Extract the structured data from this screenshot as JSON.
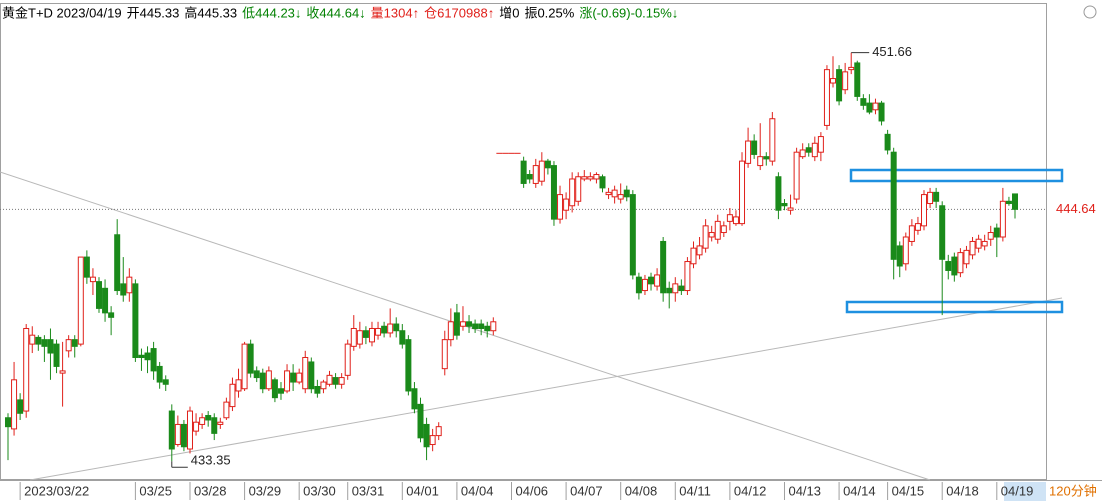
{
  "chart_data": {
    "type": "candlestick",
    "header": [
      {
        "text": "黄金T+D 2023/04/19",
        "color": "#000000"
      },
      {
        "text": "开445.33",
        "color": "#000000"
      },
      {
        "text": "高445.33",
        "color": "#000000"
      },
      {
        "text": "低444.23↓",
        "color": "#008000"
      },
      {
        "text": "收444.64↓",
        "color": "#008000"
      },
      {
        "text": "量1304↑",
        "color": "#e0201a"
      },
      {
        "text": "仓6170988↑",
        "color": "#e0201a"
      },
      {
        "text": "增0",
        "color": "#000000"
      },
      {
        "text": "振0.25%",
        "color": "#000000"
      },
      {
        "text": "涨(-0.69)-0.15%↓",
        "color": "#008000"
      }
    ],
    "period": "120分钟",
    "up_color": "#e0201a",
    "down_color": "#1a8a1a",
    "ylim": [
      432.6,
      452.9
    ],
    "last_price": 444.64,
    "max_label": 451.66,
    "min_label": 433.35,
    "categories": [
      null,
      null,
      "2023/03/22",
      null,
      null,
      null,
      null,
      null,
      null,
      null,
      null,
      null,
      null,
      null,
      null,
      null,
      null,
      null,
      null,
      null,
      null,
      "03/25",
      null,
      null,
      null,
      null,
      null,
      null,
      null,
      null,
      "03/28",
      null,
      null,
      null,
      null,
      null,
      null,
      null,
      null,
      "03/29",
      null,
      null,
      null,
      null,
      null,
      null,
      null,
      null,
      "03/30",
      null,
      null,
      null,
      null,
      null,
      null,
      null,
      "03/31",
      null,
      null,
      null,
      null,
      null,
      null,
      null,
      null,
      "04/01",
      null,
      null,
      null,
      null,
      null,
      null,
      null,
      null,
      "04/04",
      null,
      null,
      null,
      null,
      null,
      null,
      null,
      null,
      "04/06",
      null,
      null,
      null,
      null,
      null,
      null,
      null,
      null,
      "04/07",
      null,
      null,
      null,
      null,
      null,
      null,
      null,
      null,
      "04/08",
      null,
      null,
      null,
      null,
      null,
      null,
      null,
      null,
      "04/11",
      null,
      null,
      null,
      null,
      null,
      null,
      null,
      null,
      "04/12",
      null,
      null,
      null,
      null,
      null,
      null,
      null,
      null,
      "04/13",
      null,
      null,
      null,
      null,
      null,
      null,
      null,
      null,
      "04/14",
      null,
      null,
      null,
      null,
      null,
      null,
      null,
      "04/15",
      null,
      null,
      null,
      null,
      null,
      null,
      null,
      null,
      "04/18",
      null,
      null,
      null,
      null,
      null,
      null,
      null,
      null,
      "04/19",
      null,
      null,
      null
    ],
    "ohlc": [
      [
        435.3,
        435.5,
        433.4,
        434.9
      ],
      [
        434.8,
        437.8,
        434.5,
        437.0
      ],
      [
        436.1,
        436.4,
        435.2,
        435.5
      ],
      [
        435.6,
        439.5,
        435.3,
        439.3
      ],
      [
        438.6,
        439.4,
        438.2,
        439.0
      ],
      [
        438.9,
        439.0,
        438.3,
        438.6
      ],
      [
        438.8,
        439.0,
        437.8,
        438.5
      ],
      [
        438.8,
        439.3,
        437.0,
        438.2
      ],
      [
        438.6,
        438.8,
        437.3,
        437.6
      ],
      [
        437.3,
        438.7,
        435.8,
        437.4
      ],
      [
        438.3,
        439.0,
        438.0,
        438.8
      ],
      [
        438.8,
        439.0,
        438.0,
        438.5
      ],
      [
        438.6,
        442.5,
        438.5,
        442.5
      ],
      [
        442.5,
        442.8,
        441.3,
        441.6
      ],
      [
        441.4,
        442.0,
        440.8,
        441.6
      ],
      [
        441.4,
        441.6,
        440.0,
        440.2
      ],
      [
        441.1,
        441.5,
        439.6,
        440.0
      ],
      [
        440.0,
        440.3,
        439.0,
        439.8
      ],
      [
        443.5,
        444.2,
        440.8,
        441.0
      ],
      [
        441.3,
        442.5,
        440.5,
        440.8
      ],
      [
        440.9,
        442.0,
        440.5,
        441.6
      ],
      [
        441.3,
        441.5,
        437.8,
        438.0
      ],
      [
        438.1,
        438.4,
        437.4,
        438.0
      ],
      [
        438.2,
        438.5,
        437.3,
        437.9
      ],
      [
        438.4,
        438.7,
        437.0,
        437.4
      ],
      [
        437.6,
        437.8,
        436.6,
        436.9
      ],
      [
        437.0,
        437.2,
        436.5,
        436.8
      ],
      [
        435.6,
        435.9,
        433.35,
        433.9
      ],
      [
        434.1,
        435.4,
        434.0,
        435.0
      ],
      [
        435.0,
        435.2,
        433.8,
        434.0
      ],
      [
        433.9,
        435.8,
        433.7,
        435.6
      ],
      [
        434.7,
        435.5,
        434.5,
        435.1
      ],
      [
        435.0,
        435.5,
        434.8,
        435.3
      ],
      [
        435.4,
        435.6,
        434.9,
        435.2
      ],
      [
        435.3,
        435.5,
        434.3,
        434.6
      ],
      [
        435.0,
        435.3,
        434.8,
        435.1
      ],
      [
        435.3,
        436.2,
        435.2,
        436.0
      ],
      [
        435.8,
        437.1,
        435.6,
        436.8
      ],
      [
        436.5,
        437.5,
        436.2,
        437.0
      ],
      [
        436.6,
        438.7,
        436.5,
        438.6
      ],
      [
        438.6,
        438.8,
        437.1,
        437.3
      ],
      [
        437.4,
        437.6,
        436.9,
        437.1
      ],
      [
        437.3,
        437.5,
        436.4,
        436.6
      ],
      [
        436.6,
        437.6,
        436.5,
        437.4
      ],
      [
        437.0,
        437.1,
        436.0,
        436.2
      ],
      [
        436.6,
        436.9,
        436.1,
        436.4
      ],
      [
        436.5,
        437.7,
        436.4,
        437.4
      ],
      [
        437.3,
        437.7,
        436.5,
        436.9
      ],
      [
        436.9,
        437.5,
        436.8,
        437.3
      ],
      [
        436.6,
        438.3,
        436.4,
        438.0
      ],
      [
        437.8,
        438.0,
        436.4,
        436.6
      ],
      [
        436.7,
        437.0,
        436.2,
        436.4
      ],
      [
        436.6,
        437.0,
        436.4,
        436.9
      ],
      [
        436.8,
        437.4,
        436.7,
        437.2
      ],
      [
        437.1,
        437.3,
        436.6,
        436.8
      ],
      [
        436.8,
        437.3,
        436.6,
        437.1
      ],
      [
        437.2,
        438.8,
        437.0,
        438.6
      ],
      [
        438.5,
        439.9,
        438.3,
        439.3
      ],
      [
        438.6,
        439.6,
        438.4,
        439.2
      ],
      [
        439.2,
        439.4,
        438.6,
        438.9
      ],
      [
        438.7,
        439.6,
        438.5,
        439.3
      ],
      [
        439.0,
        439.6,
        438.8,
        439.3
      ],
      [
        439.4,
        439.6,
        438.9,
        439.1
      ],
      [
        439.1,
        440.2,
        438.9,
        439.5
      ],
      [
        439.5,
        439.8,
        438.9,
        439.2
      ],
      [
        439.2,
        439.5,
        438.4,
        438.6
      ],
      [
        438.8,
        439.0,
        436.3,
        436.5
      ],
      [
        436.6,
        436.9,
        435.5,
        435.7
      ],
      [
        435.9,
        436.2,
        434.2,
        434.4
      ],
      [
        435.0,
        435.3,
        433.4,
        434.0
      ],
      [
        434.1,
        434.8,
        433.8,
        434.5
      ],
      [
        434.5,
        435.1,
        434.3,
        434.9
      ],
      [
        437.5,
        439.2,
        437.2,
        438.8
      ],
      [
        438.8,
        440.2,
        438.5,
        439.6
      ],
      [
        440.0,
        440.4,
        438.8,
        439.0
      ],
      [
        439.4,
        440.3,
        439.2,
        439.6
      ],
      [
        439.6,
        439.9,
        439.1,
        439.4
      ],
      [
        439.5,
        439.7,
        439.1,
        439.3
      ],
      [
        439.5,
        439.7,
        439.0,
        439.3
      ],
      [
        439.4,
        439.6,
        438.9,
        439.2
      ],
      [
        439.2,
        439.8,
        439.0,
        439.6
      ],
      [
        447.15,
        447.15,
        447.15,
        447.15
      ],
      [
        447.15,
        447.15,
        447.15,
        447.15
      ],
      [
        447.15,
        447.15,
        447.15,
        447.15
      ],
      [
        447.15,
        447.15,
        447.15,
        447.15
      ],
      [
        446.8,
        447.0,
        445.6,
        445.8
      ],
      [
        446.2,
        446.4,
        445.8,
        446.0
      ],
      [
        445.8,
        446.9,
        445.6,
        446.6
      ],
      [
        445.9,
        447.2,
        445.7,
        446.8
      ],
      [
        446.8,
        446.9,
        446.2,
        446.5
      ],
      [
        446.6,
        446.8,
        443.9,
        444.2
      ],
      [
        444.2,
        445.7,
        444.0,
        445.3
      ],
      [
        444.6,
        445.4,
        444.2,
        445.1
      ],
      [
        444.8,
        446.3,
        444.5,
        446.0
      ],
      [
        445.0,
        446.3,
        444.8,
        446.1
      ],
      [
        446.0,
        446.4,
        445.9,
        446.1
      ],
      [
        446.0,
        446.3,
        445.9,
        446.1
      ],
      [
        446.0,
        446.3,
        445.8,
        446.2
      ],
      [
        446.1,
        446.2,
        445.4,
        445.6
      ],
      [
        445.3,
        445.6,
        445.1,
        445.4
      ],
      [
        445.2,
        445.7,
        444.9,
        445.5
      ],
      [
        445.1,
        445.8,
        444.9,
        445.3
      ],
      [
        445.5,
        445.7,
        445.0,
        445.2
      ],
      [
        445.3,
        445.5,
        441.5,
        441.7
      ],
      [
        441.6,
        441.8,
        440.6,
        440.9
      ],
      [
        441.0,
        441.7,
        440.8,
        441.5
      ],
      [
        441.6,
        441.8,
        441.0,
        441.3
      ],
      [
        441.2,
        442.0,
        441.0,
        441.7
      ],
      [
        443.2,
        443.4,
        440.5,
        440.9
      ],
      [
        441.1,
        441.4,
        440.2,
        440.9
      ],
      [
        440.9,
        441.6,
        440.5,
        441.3
      ],
      [
        441.2,
        441.5,
        440.8,
        441.0
      ],
      [
        441.0,
        442.5,
        440.8,
        442.3
      ],
      [
        442.2,
        443.2,
        442.0,
        442.9
      ],
      [
        442.6,
        443.4,
        442.4,
        443.0
      ],
      [
        442.9,
        444.2,
        442.7,
        443.9
      ],
      [
        443.4,
        443.9,
        443.2,
        443.6
      ],
      [
        443.3,
        444.4,
        443.1,
        444.1
      ],
      [
        443.6,
        444.1,
        443.4,
        443.9
      ],
      [
        444.1,
        444.7,
        443.7,
        444.4
      ],
      [
        444.0,
        444.6,
        443.9,
        444.3
      ],
      [
        444.0,
        447.2,
        443.9,
        446.8
      ],
      [
        446.7,
        448.3,
        446.5,
        447.7
      ],
      [
        447.7,
        448.0,
        446.9,
        447.1
      ],
      [
        446.6,
        448.5,
        446.4,
        447.0
      ],
      [
        447.0,
        447.2,
        446.6,
        446.9
      ],
      [
        446.8,
        449.0,
        446.6,
        448.7
      ],
      [
        446.1,
        446.3,
        444.2,
        444.6
      ],
      [
        444.9,
        445.1,
        444.6,
        444.8
      ],
      [
        444.6,
        445.3,
        444.4,
        444.7
      ],
      [
        445.1,
        447.4,
        444.9,
        447.2
      ],
      [
        447.0,
        447.6,
        446.9,
        447.3
      ],
      [
        447.4,
        447.6,
        447.0,
        447.2
      ],
      [
        447.0,
        447.9,
        446.8,
        447.6
      ],
      [
        447.2,
        448.1,
        446.8,
        447.9
      ],
      [
        448.4,
        451.1,
        448.2,
        450.9
      ],
      [
        450.3,
        451.5,
        450.1,
        450.5
      ],
      [
        450.9,
        451.1,
        449.3,
        449.5
      ],
      [
        450.0,
        451.2,
        449.8,
        450.8
      ],
      [
        450.9,
        451.66,
        450.7,
        451.0
      ],
      [
        451.2,
        451.3,
        449.5,
        449.7
      ],
      [
        449.6,
        449.8,
        449.1,
        449.3
      ],
      [
        449.4,
        449.8,
        448.9,
        449.0
      ],
      [
        449.1,
        449.6,
        448.9,
        449.4
      ],
      [
        449.4,
        449.5,
        448.4,
        448.6
      ],
      [
        448.0,
        448.2,
        447.1,
        447.3
      ],
      [
        447.2,
        447.4,
        441.5,
        442.4
      ],
      [
        443.0,
        443.2,
        441.6,
        442.1
      ],
      [
        442.2,
        443.6,
        441.9,
        443.4
      ],
      [
        443.2,
        444.2,
        443.0,
        443.9
      ],
      [
        443.7,
        444.3,
        443.5,
        444.0
      ],
      [
        443.9,
        445.5,
        443.7,
        445.3
      ],
      [
        444.9,
        445.6,
        444.7,
        445.4
      ],
      [
        445.4,
        445.6,
        444.7,
        445.0
      ],
      [
        444.8,
        445.0,
        439.9,
        442.4
      ],
      [
        442.3,
        442.6,
        441.5,
        441.9
      ],
      [
        442.5,
        442.7,
        441.4,
        441.7
      ],
      [
        441.8,
        442.9,
        441.6,
        442.7
      ],
      [
        442.2,
        443.0,
        442.0,
        442.8
      ],
      [
        442.6,
        443.4,
        442.4,
        443.2
      ],
      [
        442.9,
        443.5,
        442.7,
        443.3
      ],
      [
        443.0,
        443.5,
        442.8,
        443.2
      ],
      [
        443.3,
        443.9,
        443.0,
        443.6
      ],
      [
        443.8,
        444.0,
        442.5,
        443.4
      ],
      [
        443.4,
        445.6,
        443.2,
        445.0
      ],
      [
        445.0,
        445.2,
        444.8,
        444.9
      ],
      [
        445.33,
        445.33,
        444.23,
        444.64
      ]
    ]
  }
}
